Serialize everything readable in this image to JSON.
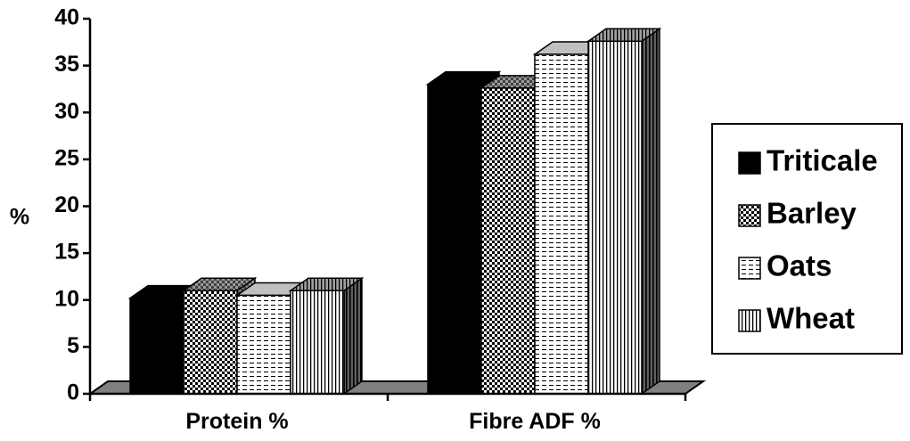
{
  "chart_data": {
    "type": "bar",
    "categories": [
      "Protein %",
      "Fibre ADF %"
    ],
    "series": [
      {
        "name": "Triticale",
        "values": [
          10.2,
          33.0
        ],
        "pattern": "solid"
      },
      {
        "name": "Barley",
        "values": [
          11.0,
          32.6
        ],
        "pattern": "checker"
      },
      {
        "name": "Oats",
        "values": [
          10.5,
          36.2
        ],
        "pattern": "horizontal-dashes"
      },
      {
        "name": "Wheat",
        "values": [
          11.0,
          37.6
        ],
        "pattern": "vertical-lines"
      }
    ],
    "ylabel": "%",
    "ylim": [
      0,
      40
    ],
    "yticks": [
      "0",
      "5",
      "10",
      "15",
      "20",
      "25",
      "30",
      "35",
      "40"
    ],
    "legend_position": "right",
    "three_d": true,
    "colors": {
      "ink": "#000000",
      "floor": "#808080",
      "top_light": "#c0c0c0",
      "background": "#ffffff"
    }
  }
}
